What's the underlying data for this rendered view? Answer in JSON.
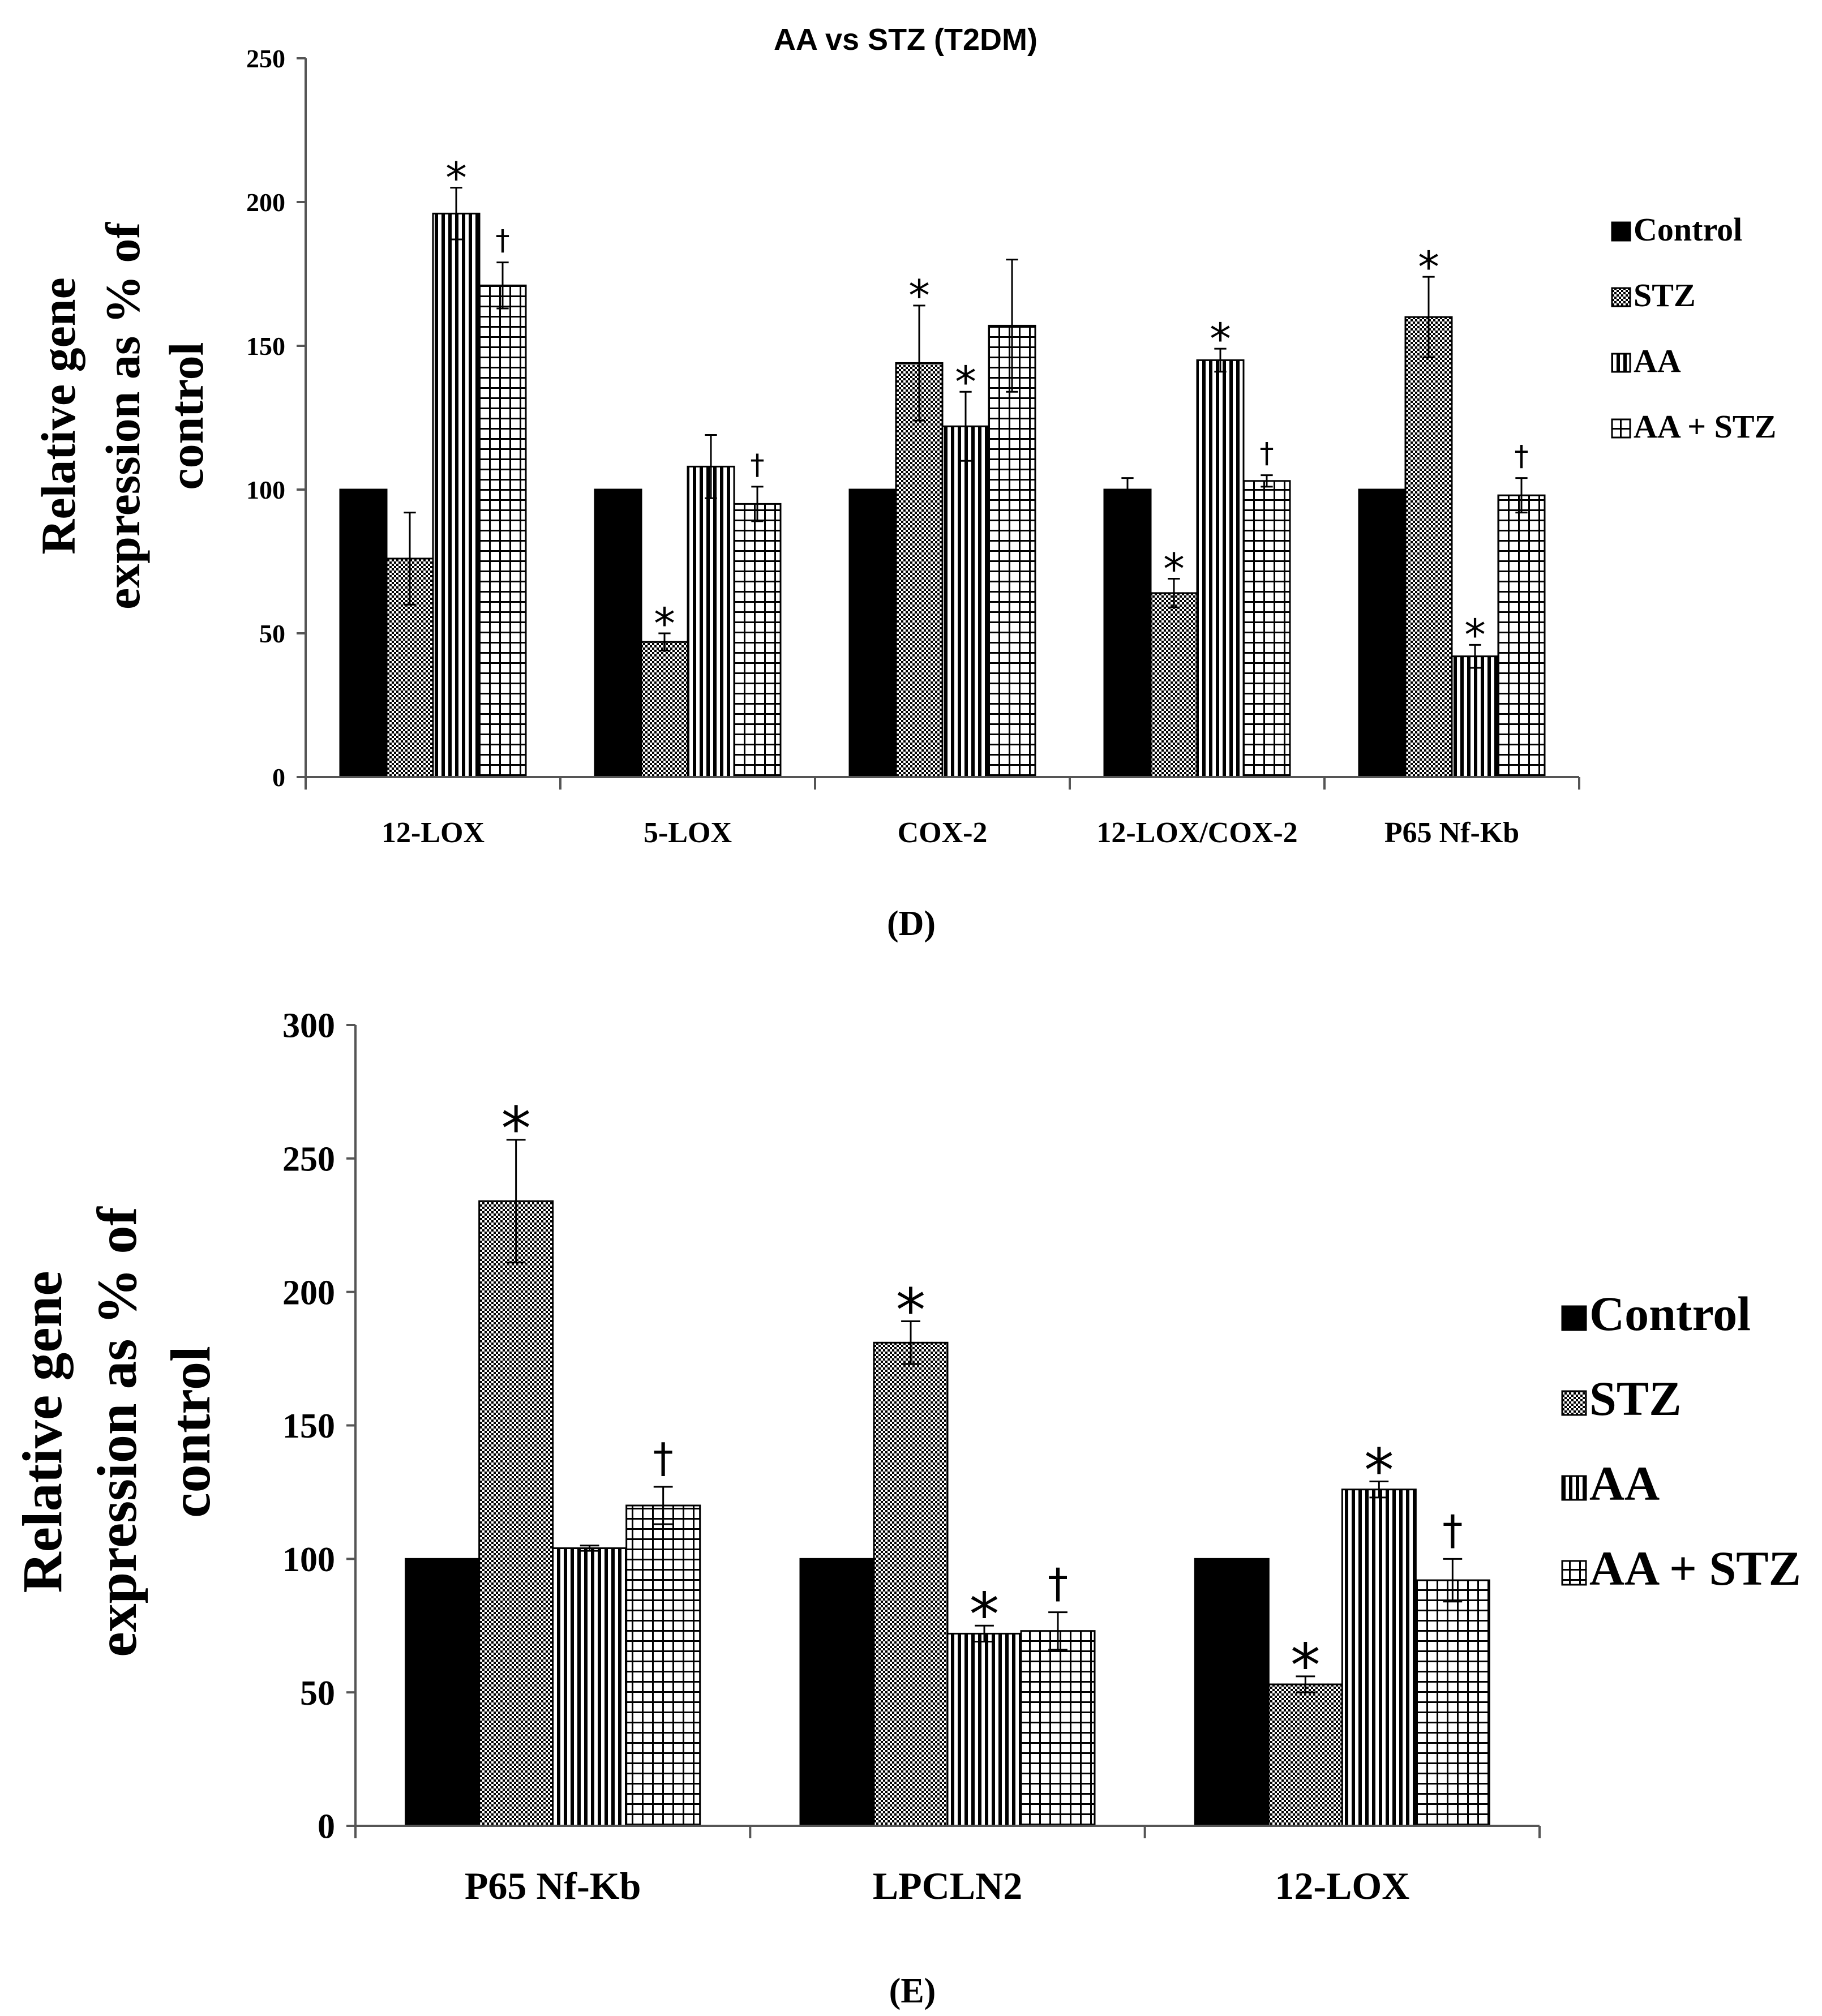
{
  "chart_data": [
    {
      "type": "bar",
      "title": "AA vs STZ (T2DM)",
      "panel_label": "(D)",
      "ylabel_lines": [
        "Relative gene",
        "expression as % of",
        "control"
      ],
      "xlabel": "",
      "ylim": [
        0,
        250
      ],
      "yticks": [
        0,
        50,
        100,
        150,
        200,
        250
      ],
      "categories": [
        "12-LOX",
        "5-LOX",
        "COX-2",
        "12-LOX/COX-2",
        "P65 Nf-Kb"
      ],
      "series": [
        {
          "name": "Control",
          "pattern": "solid",
          "values": [
            100,
            100,
            100,
            100,
            100
          ],
          "errors": [
            0,
            0,
            0,
            4,
            0
          ],
          "marks": [
            "",
            "",
            "",
            "",
            ""
          ]
        },
        {
          "name": "STZ",
          "pattern": "dots",
          "values": [
            76,
            47,
            144,
            64,
            160
          ],
          "errors": [
            16,
            3,
            20,
            5,
            14
          ],
          "marks": [
            "",
            "*",
            "*",
            "*",
            "*"
          ]
        },
        {
          "name": "AA",
          "pattern": "vlines",
          "values": [
            196,
            108,
            122,
            145,
            42
          ],
          "errors": [
            9,
            11,
            12,
            4,
            4
          ],
          "marks": [
            "*",
            "",
            "*",
            "*",
            "*"
          ]
        },
        {
          "name": "AA + STZ",
          "pattern": "grid",
          "values": [
            171,
            95,
            157,
            103,
            98
          ],
          "errors": [
            8,
            6,
            23,
            2,
            6
          ],
          "marks": [
            "†",
            "†",
            "",
            "†",
            "†"
          ]
        }
      ],
      "legend": {
        "placement": "right",
        "entries": [
          "Control",
          "STZ",
          "AA",
          "AA + STZ"
        ]
      }
    },
    {
      "type": "bar",
      "title": "",
      "panel_label": "(E)",
      "ylabel_lines": [
        "Relative gene",
        "expression as % of",
        "control"
      ],
      "xlabel": "",
      "ylim": [
        0,
        300
      ],
      "yticks": [
        0,
        50,
        100,
        150,
        200,
        250,
        300
      ],
      "categories": [
        "P65 Nf-Kb",
        "LPCLN2",
        "12-LOX"
      ],
      "series": [
        {
          "name": "Control",
          "pattern": "solid",
          "values": [
            100,
            100,
            100
          ],
          "errors": [
            0,
            0,
            0
          ],
          "marks": [
            "",
            "",
            ""
          ]
        },
        {
          "name": "STZ",
          "pattern": "dots",
          "values": [
            234,
            181,
            53
          ],
          "errors": [
            23,
            8,
            3
          ],
          "marks": [
            "*",
            "*",
            "*"
          ]
        },
        {
          "name": "AA",
          "pattern": "vlines",
          "values": [
            104,
            72,
            126
          ],
          "errors": [
            1,
            3,
            3
          ],
          "marks": [
            "",
            "*",
            "*"
          ]
        },
        {
          "name": "AA + STZ",
          "pattern": "grid",
          "values": [
            120,
            73,
            92
          ],
          "errors": [
            7,
            7,
            8
          ],
          "marks": [
            "†",
            "†",
            "†"
          ]
        }
      ],
      "legend": {
        "placement": "right",
        "entries": [
          "Control",
          "STZ",
          "AA",
          "AA + STZ"
        ]
      }
    }
  ]
}
